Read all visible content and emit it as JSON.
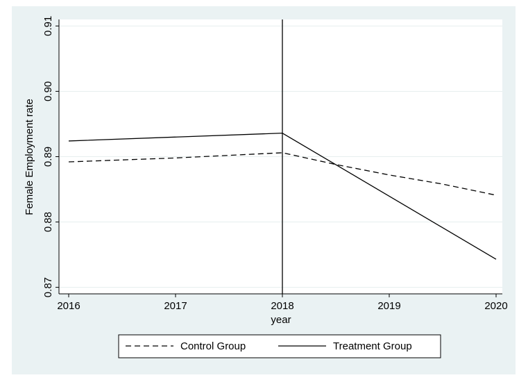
{
  "chart_data": {
    "type": "line",
    "title": "",
    "xlabel": "year",
    "ylabel": "Female Employment rate",
    "x": [
      2016,
      2017,
      2018,
      2019,
      2020
    ],
    "x_ticks": [
      "2016",
      "2017",
      "2018",
      "2019",
      "2020"
    ],
    "y_ticks": [
      "0.87",
      "0.88",
      "0.89",
      "0.90",
      "0.91"
    ],
    "y_tick_values": [
      0.87,
      0.88,
      0.89,
      0.9,
      0.91
    ],
    "xlim": [
      2016,
      2020
    ],
    "ylim": [
      0.869,
      0.911
    ],
    "grid": true,
    "legend_position": "bottom",
    "reference_line_x": 2018,
    "series": [
      {
        "name": "Control Group",
        "style": "dashed",
        "x": [
          2016,
          2016.5,
          2017,
          2017.5,
          2018,
          2018.5,
          2019,
          2019.5,
          2020
        ],
        "values": [
          0.8892,
          0.8895,
          0.8898,
          0.8902,
          0.8906,
          0.8888,
          0.8872,
          0.8858,
          0.8841
        ]
      },
      {
        "name": "Treatment Group",
        "style": "solid",
        "x": [
          2016,
          2018,
          2020
        ],
        "values": [
          0.8924,
          0.8936,
          0.8743
        ]
      }
    ],
    "colors": {
      "background": "#eaf2f3",
      "plot_area": "#ffffff",
      "line": "#000000",
      "grid": "#e6eeee"
    }
  }
}
